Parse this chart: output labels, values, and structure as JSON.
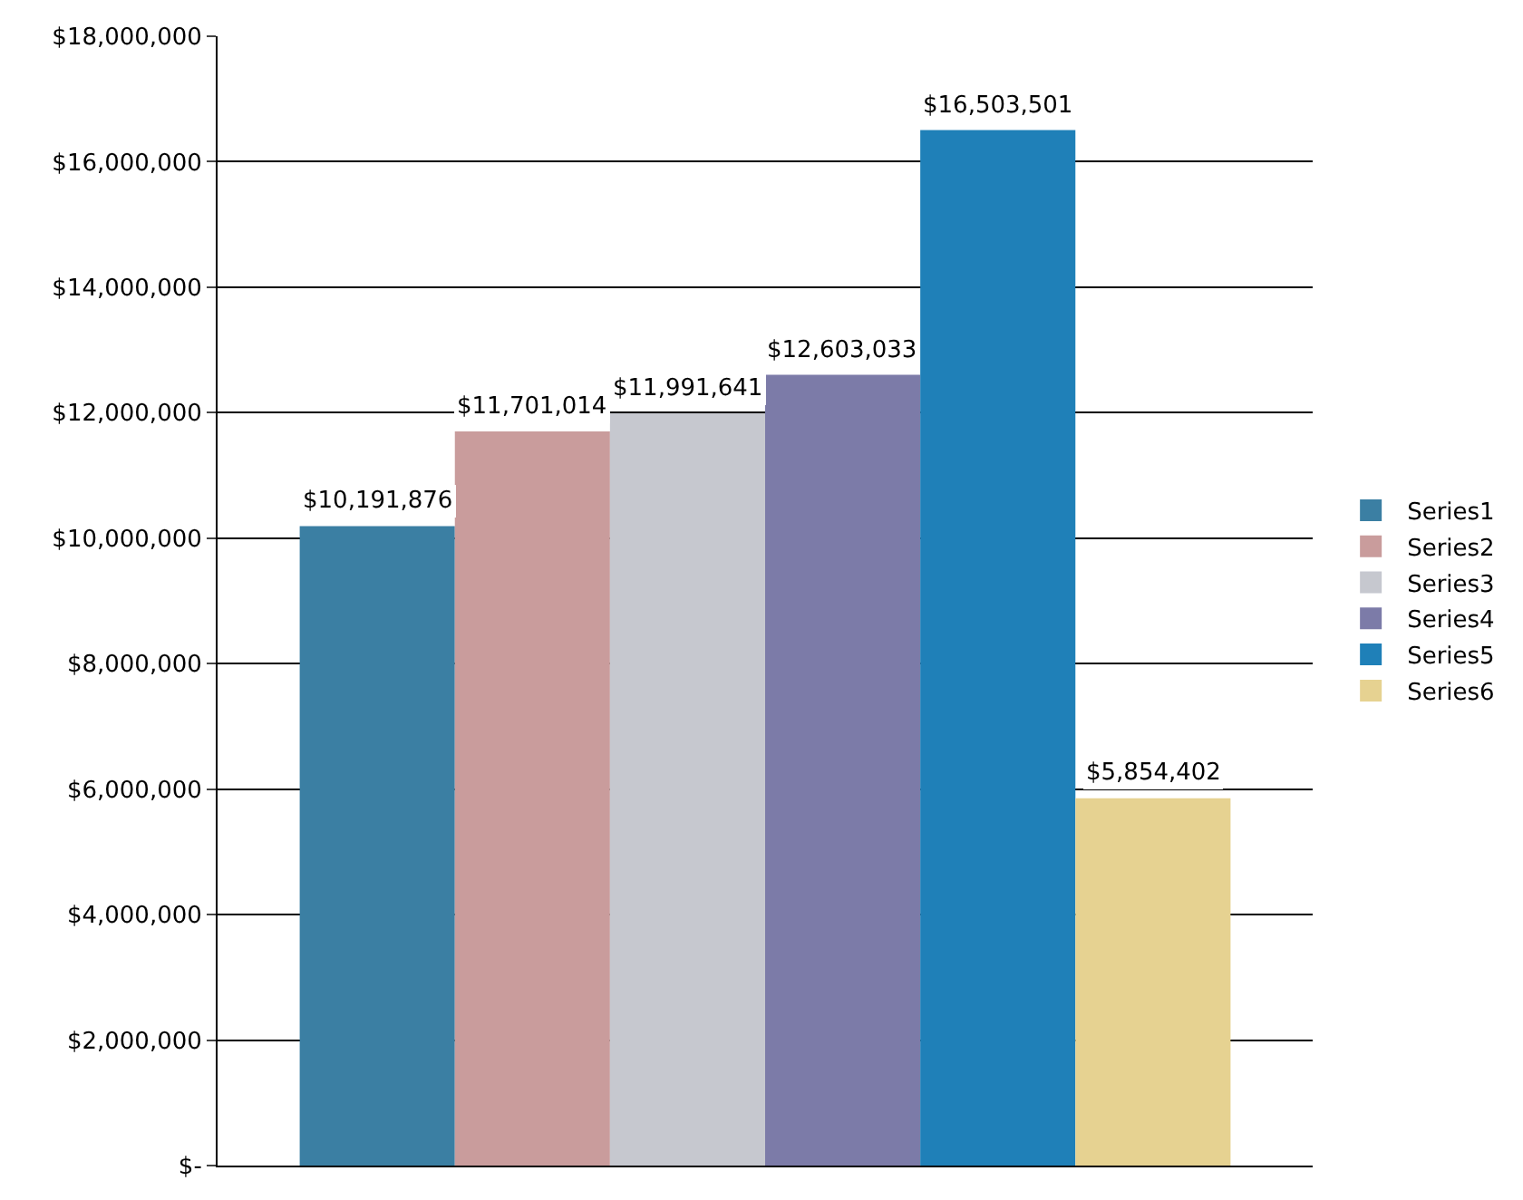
{
  "chart_data": {
    "type": "bar",
    "categories": [
      null
    ],
    "series": [
      {
        "name": "Series1",
        "color": "#3b7fa3",
        "values": [
          10191876
        ],
        "value_labels": [
          "$10,191,876"
        ]
      },
      {
        "name": "Series2",
        "color": "#c99c9c",
        "values": [
          11701014
        ],
        "value_labels": [
          "$11,701,014"
        ]
      },
      {
        "name": "Series3",
        "color": "#c6c8cf",
        "values": [
          11991641
        ],
        "value_labels": [
          "$11,991,641"
        ]
      },
      {
        "name": "Series4",
        "color": "#7c7ba8",
        "values": [
          12603033
        ],
        "value_labels": [
          "$12,603,033"
        ]
      },
      {
        "name": "Series5",
        "color": "#1f80b8",
        "values": [
          16503501
        ],
        "value_labels": [
          "$16,503,501"
        ]
      },
      {
        "name": "Series6",
        "color": "#e6d291",
        "values": [
          5854402
        ],
        "value_labels": [
          "$5,854,402"
        ]
      }
    ],
    "ylim": [
      0,
      18000000
    ],
    "yticks": [
      {
        "value": 0,
        "label": "$-"
      },
      {
        "value": 2000000,
        "label": "$2,000,000"
      },
      {
        "value": 4000000,
        "label": "$4,000,000"
      },
      {
        "value": 6000000,
        "label": "$6,000,000"
      },
      {
        "value": 8000000,
        "label": "$8,000,000"
      },
      {
        "value": 10000000,
        "label": "$10,000,000"
      },
      {
        "value": 12000000,
        "label": "$12,000,000"
      },
      {
        "value": 14000000,
        "label": "$14,000,000"
      },
      {
        "value": 16000000,
        "label": "$16,000,000"
      },
      {
        "value": 18000000,
        "label": "$18,000,000"
      }
    ],
    "grid": "y",
    "legend": "right"
  }
}
